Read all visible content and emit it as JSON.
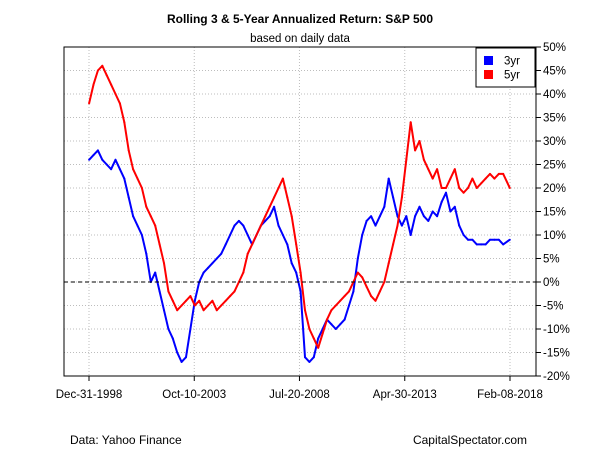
{
  "chart_data": {
    "type": "line",
    "title": "Rolling 3 & 5-Year Annualized Return: S&P 500",
    "subtitle": "based on daily data",
    "xlabel": "",
    "ylabel": "",
    "x_tick_labels": [
      "Dec-31-1998",
      "Oct-10-2003",
      "Jul-20-2008",
      "Apr-30-2013",
      "Feb-08-2018"
    ],
    "x_ticks": [
      1998.997,
      2003.775,
      2008.55,
      2013.33,
      2018.107
    ],
    "xlim": [
      1998.997,
      2018.107
    ],
    "ylim": [
      -20,
      50
    ],
    "y_ticks": [
      -20,
      -15,
      -10,
      -5,
      0,
      5,
      10,
      15,
      20,
      25,
      30,
      35,
      40,
      45,
      50
    ],
    "y_tick_labels": [
      "-20%",
      "-15%",
      "-10%",
      "-5%",
      "0%",
      "5%",
      "10%",
      "15%",
      "20%",
      "25%",
      "30%",
      "35%",
      "40%",
      "45%",
      "50%"
    ],
    "y_axis_side": "right",
    "grid": true,
    "reference_line": {
      "y": 0,
      "style": "dashed"
    },
    "legend": {
      "position": "top-right",
      "entries": [
        "3yr",
        "5yr"
      ]
    },
    "series": [
      {
        "name": "3yr",
        "color": "#0000ff",
        "x": [
          1999.0,
          1999.2,
          1999.4,
          1999.6,
          1999.8,
          2000.0,
          2000.2,
          2000.4,
          2000.6,
          2000.8,
          2001.0,
          2001.2,
          2001.4,
          2001.6,
          2001.8,
          2002.0,
          2002.2,
          2002.4,
          2002.6,
          2002.8,
          2003.0,
          2003.2,
          2003.4,
          2003.6,
          2003.8,
          2004.0,
          2004.2,
          2004.4,
          2004.6,
          2004.8,
          2005.0,
          2005.2,
          2005.4,
          2005.6,
          2005.8,
          2006.0,
          2006.2,
          2006.4,
          2006.6,
          2006.8,
          2007.0,
          2007.2,
          2007.4,
          2007.6,
          2007.8,
          2008.0,
          2008.2,
          2008.4,
          2008.6,
          2008.8,
          2009.0,
          2009.2,
          2009.4,
          2009.6,
          2009.8,
          2010.0,
          2010.2,
          2010.4,
          2010.6,
          2010.8,
          2011.0,
          2011.2,
          2011.4,
          2011.6,
          2011.8,
          2012.0,
          2012.2,
          2012.4,
          2012.6,
          2012.8,
          2013.0,
          2013.2,
          2013.4,
          2013.6,
          2013.8,
          2014.0,
          2014.2,
          2014.4,
          2014.6,
          2014.8,
          2015.0,
          2015.2,
          2015.4,
          2015.6,
          2015.8,
          2016.0,
          2016.2,
          2016.4,
          2016.6,
          2016.8,
          2017.0,
          2017.2,
          2017.4,
          2017.6,
          2017.8,
          2018.1
        ],
        "values": [
          26,
          27,
          28,
          26,
          25,
          24,
          26,
          24,
          22,
          18,
          14,
          12,
          10,
          6,
          0,
          2,
          -2,
          -6,
          -10,
          -12,
          -15,
          -17,
          -16,
          -10,
          -4,
          0,
          2,
          3,
          4,
          5,
          6,
          8,
          10,
          12,
          13,
          12,
          10,
          8,
          10,
          12,
          13,
          14,
          16,
          12,
          10,
          8,
          4,
          2,
          -2,
          -16,
          -17,
          -16,
          -12,
          -10,
          -8,
          -9,
          -10,
          -9,
          -8,
          -5,
          -2,
          5,
          10,
          13,
          14,
          12,
          14,
          16,
          22,
          18,
          14,
          12,
          14,
          10,
          14,
          16,
          14,
          13,
          15,
          14,
          17,
          19,
          15,
          16,
          12,
          10,
          9,
          9,
          8,
          8,
          8,
          9,
          9,
          9,
          8,
          9
        ]
      },
      {
        "name": "5yr",
        "color": "#ff0000",
        "x": [
          1999.0,
          1999.2,
          1999.4,
          1999.6,
          1999.8,
          2000.0,
          2000.2,
          2000.4,
          2000.6,
          2000.8,
          2001.0,
          2001.2,
          2001.4,
          2001.6,
          2001.8,
          2002.0,
          2002.2,
          2002.4,
          2002.6,
          2002.8,
          2003.0,
          2003.2,
          2003.4,
          2003.6,
          2003.8,
          2004.0,
          2004.2,
          2004.4,
          2004.6,
          2004.8,
          2005.0,
          2005.2,
          2005.4,
          2005.6,
          2005.8,
          2006.0,
          2006.2,
          2006.4,
          2006.6,
          2006.8,
          2007.0,
          2007.2,
          2007.4,
          2007.6,
          2007.8,
          2008.0,
          2008.2,
          2008.4,
          2008.6,
          2008.8,
          2009.0,
          2009.2,
          2009.4,
          2009.6,
          2009.8,
          2010.0,
          2010.2,
          2010.4,
          2010.6,
          2010.8,
          2011.0,
          2011.2,
          2011.4,
          2011.6,
          2011.8,
          2012.0,
          2012.2,
          2012.4,
          2012.6,
          2012.8,
          2013.0,
          2013.2,
          2013.4,
          2013.6,
          2013.8,
          2014.0,
          2014.2,
          2014.4,
          2014.6,
          2014.8,
          2015.0,
          2015.2,
          2015.4,
          2015.6,
          2015.8,
          2016.0,
          2016.2,
          2016.4,
          2016.6,
          2016.8,
          2017.0,
          2017.2,
          2017.4,
          2017.6,
          2017.8,
          2018.1
        ],
        "values": [
          38,
          42,
          45,
          46,
          44,
          42,
          40,
          38,
          34,
          28,
          24,
          22,
          20,
          16,
          14,
          12,
          8,
          4,
          -2,
          -4,
          -6,
          -5,
          -4,
          -3,
          -5,
          -4,
          -6,
          -5,
          -4,
          -6,
          -5,
          -4,
          -3,
          -2,
          0,
          2,
          6,
          8,
          10,
          12,
          14,
          16,
          18,
          20,
          22,
          18,
          14,
          8,
          2,
          -6,
          -10,
          -12,
          -14,
          -11,
          -8,
          -6,
          -5,
          -4,
          -3,
          -2,
          0,
          2,
          1,
          -1,
          -3,
          -4,
          -2,
          0,
          4,
          8,
          12,
          18,
          26,
          34,
          28,
          30,
          26,
          24,
          22,
          24,
          20,
          20,
          22,
          24,
          20,
          19,
          20,
          22,
          20,
          21,
          22,
          23,
          22,
          23,
          23,
          20
        ]
      }
    ],
    "footer_left": "Data: Yahoo Finance",
    "footer_right": "CapitalSpectator.com"
  }
}
